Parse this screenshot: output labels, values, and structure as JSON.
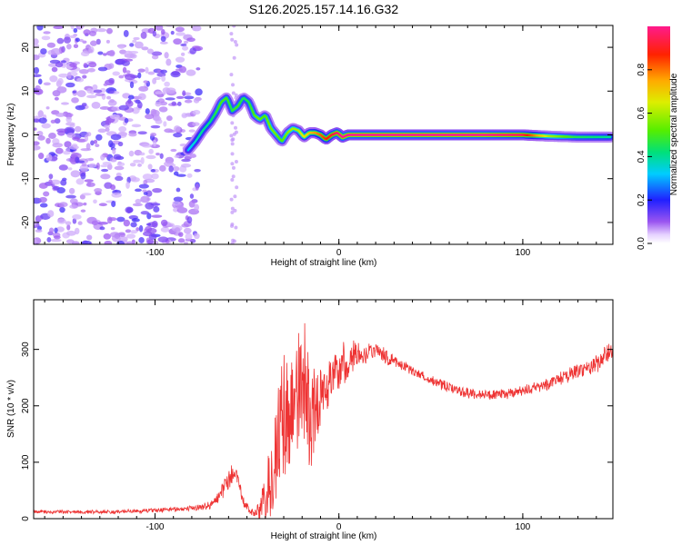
{
  "title": "S126.2025.157.14.16.G32",
  "chart_data": [
    {
      "type": "heatmap",
      "title": "S126.2025.157.14.16.G32",
      "xlabel": "Height of straight line (km)",
      "ylabel": "Frequency (Hz)",
      "xlim": [
        -166,
        149
      ],
      "ylim": [
        -25,
        25
      ],
      "x_ticks": [
        -100,
        0,
        100
      ],
      "y_ticks": [
        -20,
        -10,
        0,
        10,
        20
      ],
      "noise_region_x": [
        -166,
        -80
      ],
      "ridge": {
        "x": [
          -82,
          -78,
          -74,
          -70,
          -67,
          -64,
          -61,
          -58,
          -55,
          -52,
          -49,
          -46,
          -43,
          -40,
          -37,
          -34,
          -31,
          -28,
          -25,
          -22,
          -19,
          -16,
          -13,
          -10,
          -7,
          -4,
          -1,
          2,
          5,
          10,
          20,
          40,
          60,
          80,
          100,
          115,
          130,
          148
        ],
        "y": [
          -3.5,
          -1.5,
          1,
          3,
          5,
          7.5,
          8.5,
          5.5,
          6.5,
          8.5,
          7.5,
          4.5,
          3.5,
          4.5,
          1.5,
          0,
          -1.5,
          0.5,
          1.5,
          1,
          -0.5,
          0.5,
          0.5,
          0,
          -1,
          0,
          0.5,
          -0.5,
          0,
          0,
          0,
          0,
          0,
          0,
          0,
          -0.3,
          -0.5,
          -0.5
        ],
        "amplitude": [
          0.3,
          0.35,
          0.4,
          0.4,
          0.45,
          0.5,
          0.5,
          0.45,
          0.5,
          0.45,
          0.45,
          0.5,
          0.55,
          0.5,
          0.55,
          0.55,
          0.5,
          0.55,
          0.6,
          0.6,
          0.65,
          0.7,
          0.75,
          0.8,
          0.85,
          0.9,
          0.95,
          1.0,
          1.0,
          1.0,
          1.0,
          1.0,
          1.0,
          1.0,
          0.95,
          0.6,
          0.45,
          0.4
        ]
      },
      "colorbar": {
        "label": "Normalized spectral amplitude",
        "range": [
          0,
          1
        ],
        "ticks": [
          "0.0",
          "0.2",
          "0.4",
          "0.6",
          "0.8"
        ],
        "colormap": "rainbow (violet - blue - cyan - green - yellow - red - magenta)"
      }
    },
    {
      "type": "line",
      "xlabel": "Height of straight line (km)",
      "ylabel": "SNR (10 * v/v)",
      "xlim": [
        -166,
        149
      ],
      "ylim": [
        0,
        388
      ],
      "x_ticks": [
        -100,
        0,
        100
      ],
      "y_ticks": [
        0,
        100,
        200,
        300
      ],
      "line_color": "#ee3333",
      "envelope_x": [
        -166,
        -120,
        -80,
        -70,
        -65,
        -60,
        -56,
        -52,
        -48,
        -45,
        -40,
        -36,
        -32,
        -28,
        -24,
        -20,
        -16,
        -12,
        -8,
        -4,
        0,
        5,
        10,
        15,
        20,
        25,
        30,
        40,
        50,
        60,
        70,
        80,
        90,
        100,
        110,
        120,
        130,
        140,
        149
      ],
      "envelope_y": [
        12,
        12,
        18,
        24,
        40,
        70,
        85,
        30,
        12,
        10,
        30,
        80,
        140,
        170,
        210,
        240,
        200,
        190,
        230,
        250,
        265,
        280,
        292,
        295,
        300,
        288,
        280,
        262,
        245,
        232,
        223,
        219,
        220,
        226,
        235,
        248,
        262,
        275,
        300
      ],
      "noise_amplitude": [
        3,
        3,
        4,
        6,
        10,
        18,
        15,
        8,
        5,
        8,
        40,
        80,
        110,
        120,
        110,
        100,
        110,
        80,
        55,
        40,
        35,
        28,
        20,
        15,
        12,
        12,
        10,
        8,
        8,
        8,
        8,
        8,
        8,
        8,
        9,
        10,
        12,
        14,
        16
      ]
    }
  ]
}
